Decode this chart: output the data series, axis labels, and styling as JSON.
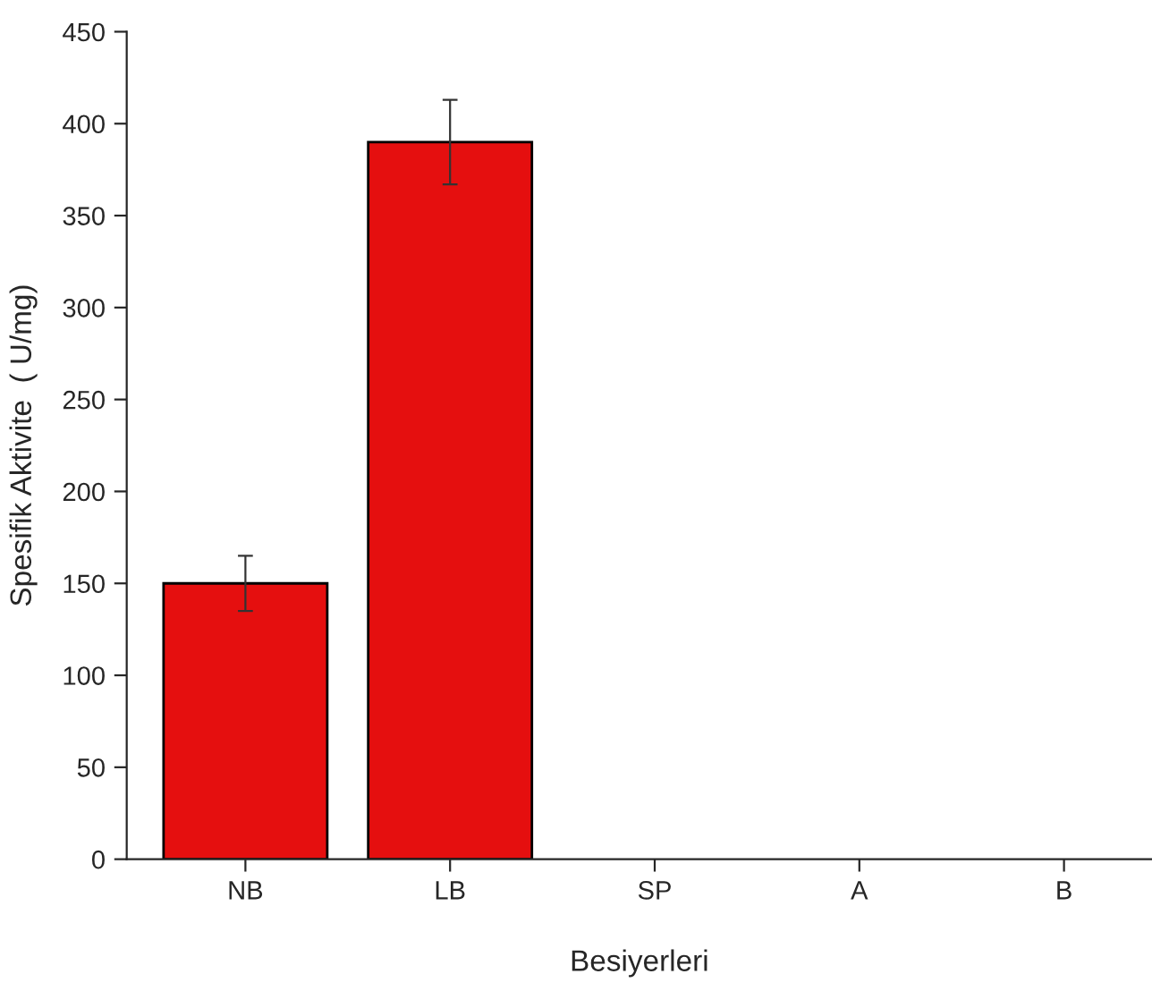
{
  "chart_data": {
    "type": "bar",
    "xlabel": "Besiyerleri",
    "ylabel": "Spesifik Aktivite  ( U/mg)",
    "categories": [
      "NB",
      "LB",
      "SP",
      "A",
      "B"
    ],
    "values": [
      150,
      390,
      null,
      null,
      null
    ],
    "errors": [
      15,
      23,
      null,
      null,
      null
    ],
    "color": "#e50f0f",
    "ylim": [
      0,
      450
    ],
    "yticks": [
      0,
      50,
      100,
      150,
      200,
      250,
      300,
      350,
      400,
      450
    ],
    "grid": false
  }
}
